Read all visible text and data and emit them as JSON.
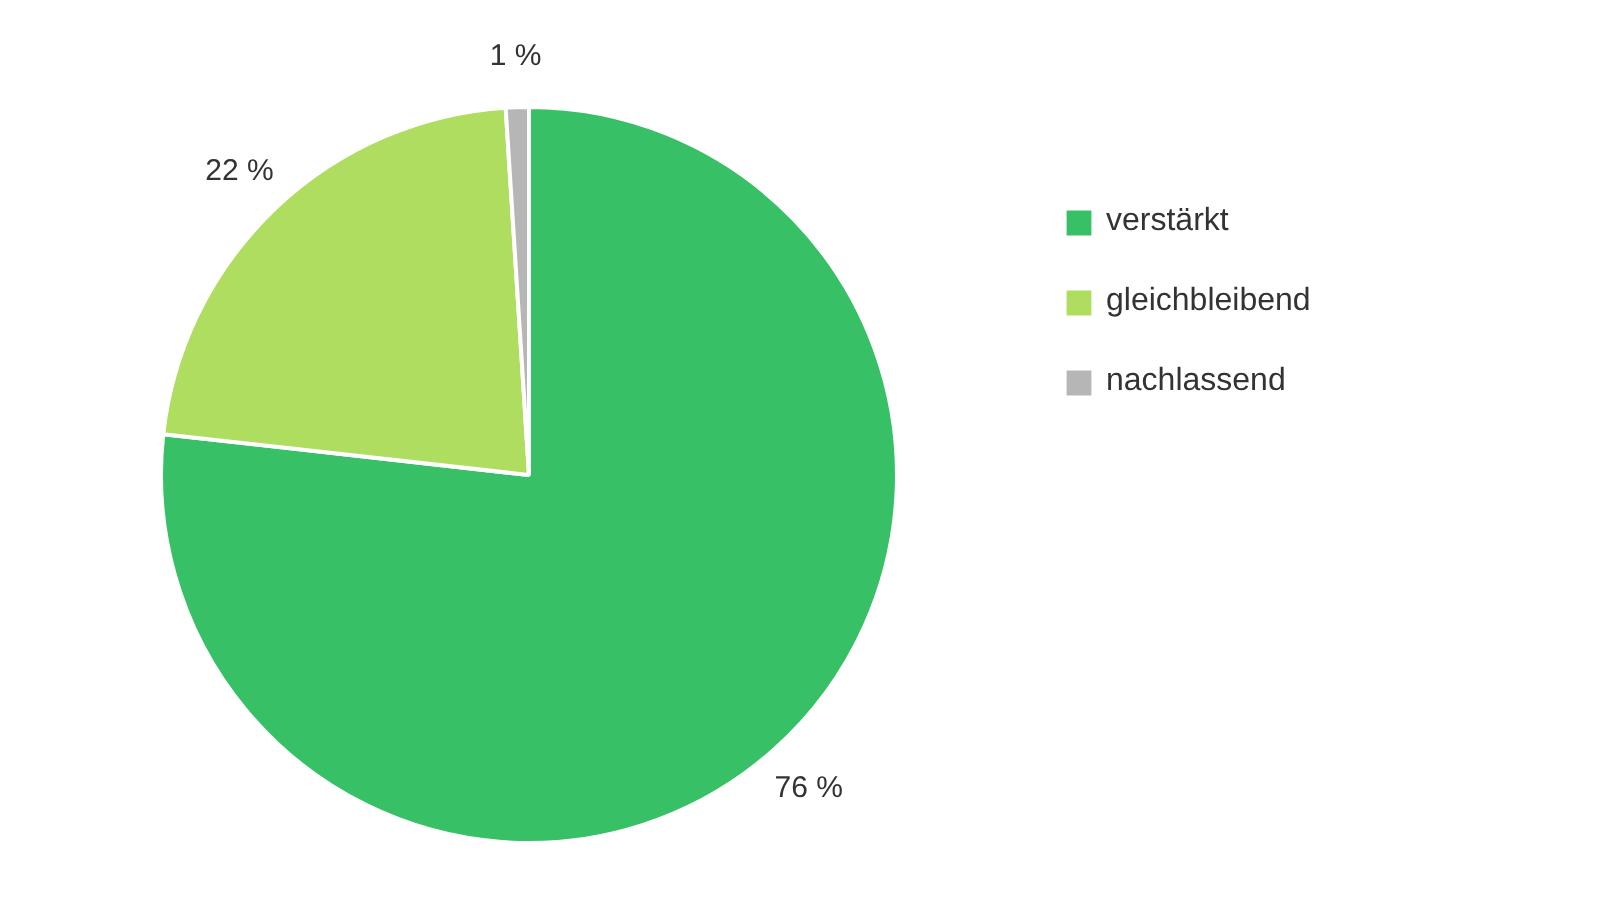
{
  "chart_data": {
    "type": "pie",
    "categories": [
      "verstärkt",
      "gleichbleibend",
      "nachlassend"
    ],
    "values": [
      76,
      22,
      1
    ],
    "colors": [
      "#38c066",
      "#aedd60",
      "#b6b6b6"
    ],
    "value_labels": [
      "76 %",
      "22 %",
      "1 %"
    ],
    "legend": "right"
  }
}
